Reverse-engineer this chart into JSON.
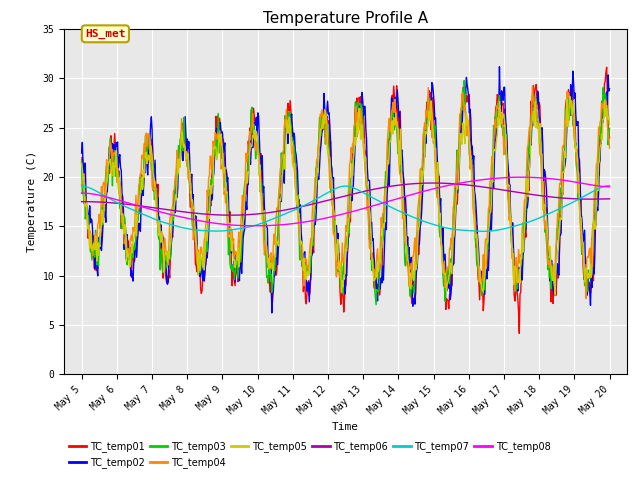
{
  "title": "Temperature Profile A",
  "xlabel": "Time",
  "ylabel": "Temperature (C)",
  "ylim": [
    0,
    35
  ],
  "xlim_days": [
    4.5,
    20.5
  ],
  "plot_bg": "#e8e8e8",
  "fig_bg": "#ffffff",
  "annotation_text": "HS_met",
  "annotation_bg": "#ffffcc",
  "annotation_edge": "#b8a000",
  "annotation_fg": "#cc0000",
  "series_colors": {
    "TC_temp01": "#ff0000",
    "TC_temp02": "#0000ff",
    "TC_temp03": "#00cc00",
    "TC_temp04": "#ff8800",
    "TC_temp05": "#cccc00",
    "TC_temp06": "#aa00aa",
    "TC_temp07": "#00cccc",
    "TC_temp08": "#ff00ff"
  },
  "x_tick_labels": [
    "May 5",
    "May 6",
    "May 7",
    "May 8",
    "May 9",
    "May 10",
    "May 11",
    "May 12",
    "May 13",
    "May 14",
    "May 15",
    "May 16",
    "May 17",
    "May 18",
    "May 19",
    "May 20"
  ],
  "x_tick_positions": [
    5,
    6,
    7,
    8,
    9,
    10,
    11,
    12,
    13,
    14,
    15,
    16,
    17,
    18,
    19,
    20
  ],
  "y_ticks": [
    0,
    5,
    10,
    15,
    20,
    25,
    30,
    35
  ],
  "figsize": [
    6.4,
    4.8
  ],
  "dpi": 100,
  "linewidth": 1.0,
  "fontsize_title": 11,
  "fontsize_labels": 8,
  "fontsize_ticks": 7,
  "fontsize_legend": 7,
  "fontsize_annot": 8
}
